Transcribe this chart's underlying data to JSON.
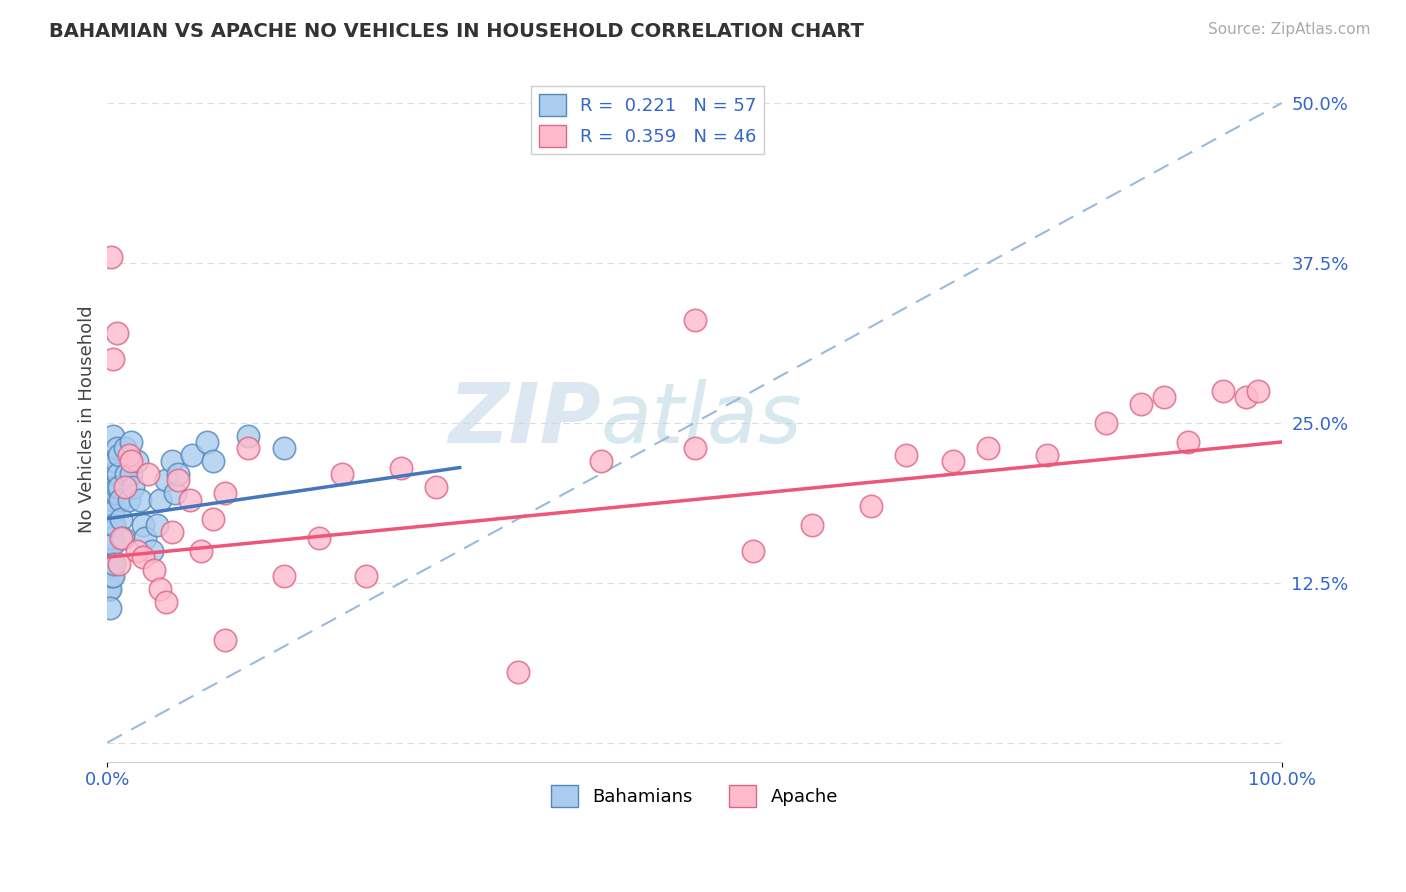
{
  "title": "BAHAMIAN VS APACHE NO VEHICLES IN HOUSEHOLD CORRELATION CHART",
  "source": "Source: ZipAtlas.com",
  "ylabel": "No Vehicles in Household",
  "y_tick_values_right": [
    0,
    12.5,
    25.0,
    37.5,
    50.0
  ],
  "y_tick_labels_right": [
    "",
    "12.5%",
    "25.0%",
    "37.5%",
    "50.0%"
  ],
  "xlim": [
    0.0,
    100.0
  ],
  "ylim": [
    -1.5,
    52.0
  ],
  "legend_label1": "R =  0.221   N = 57",
  "legend_label2": "R =  0.359   N = 46",
  "bottom_legend_labels": [
    "Bahamians",
    "Apache"
  ],
  "color_blue_face": "#aaccee",
  "color_blue_edge": "#5588bb",
  "color_pink_face": "#ffbbcc",
  "color_pink_edge": "#dd6688",
  "regression_blue": "#4477bb",
  "regression_pink": "#ee5577",
  "background_color": "#ffffff",
  "grid_color": "#cccccc",
  "watermark_zip": "ZIP",
  "watermark_atlas": "atlas",
  "bahamian_x": [
    0.1,
    0.1,
    0.1,
    0.1,
    0.2,
    0.2,
    0.2,
    0.2,
    0.2,
    0.3,
    0.3,
    0.3,
    0.3,
    0.4,
    0.4,
    0.4,
    0.4,
    0.5,
    0.5,
    0.5,
    0.5,
    0.5,
    0.6,
    0.6,
    0.6,
    0.7,
    0.7,
    0.8,
    0.8,
    0.9,
    1.0,
    1.0,
    1.1,
    1.2,
    1.3,
    1.5,
    1.6,
    1.8,
    2.0,
    2.0,
    2.2,
    2.5,
    2.8,
    3.0,
    3.2,
    3.8,
    4.2,
    4.5,
    5.0,
    5.5,
    5.8,
    6.0,
    7.2,
    8.5,
    9.0,
    12.0,
    15.0
  ],
  "bahamian_y": [
    16.5,
    15.0,
    13.5,
    12.0,
    18.0,
    16.0,
    14.0,
    12.0,
    10.5,
    20.0,
    17.0,
    15.5,
    14.0,
    22.0,
    19.0,
    16.0,
    13.0,
    24.0,
    21.0,
    18.0,
    15.5,
    13.0,
    20.0,
    17.0,
    14.0,
    22.0,
    19.5,
    23.0,
    20.0,
    21.0,
    22.5,
    20.0,
    19.0,
    17.5,
    16.0,
    23.0,
    21.0,
    19.0,
    23.5,
    21.0,
    20.0,
    22.0,
    19.0,
    17.0,
    16.0,
    15.0,
    17.0,
    19.0,
    20.5,
    22.0,
    19.5,
    21.0,
    22.5,
    23.5,
    22.0,
    24.0,
    23.0
  ],
  "apache_x": [
    0.3,
    0.5,
    0.8,
    1.0,
    1.2,
    1.5,
    1.8,
    2.0,
    2.5,
    3.0,
    3.5,
    4.0,
    4.5,
    5.0,
    5.5,
    6.0,
    7.0,
    8.0,
    9.0,
    10.0,
    12.0,
    15.0,
    18.0,
    20.0,
    22.0,
    25.0,
    28.0,
    35.0,
    42.0,
    50.0,
    55.0,
    60.0,
    65.0,
    68.0,
    72.0,
    75.0,
    80.0,
    85.0,
    88.0,
    90.0,
    92.0,
    95.0,
    97.0,
    98.0,
    50.0,
    10.0
  ],
  "apache_y": [
    38.0,
    30.0,
    32.0,
    14.0,
    16.0,
    20.0,
    22.5,
    22.0,
    15.0,
    14.5,
    21.0,
    13.5,
    12.0,
    11.0,
    16.5,
    20.5,
    19.0,
    15.0,
    17.5,
    19.5,
    23.0,
    13.0,
    16.0,
    21.0,
    13.0,
    21.5,
    20.0,
    5.5,
    22.0,
    23.0,
    15.0,
    17.0,
    18.5,
    22.5,
    22.0,
    23.0,
    22.5,
    25.0,
    26.5,
    27.0,
    23.5,
    27.5,
    27.0,
    27.5,
    33.0,
    8.0
  ],
  "ref_line_color": "#99bbdd",
  "ref_line_x": [
    0,
    100
  ],
  "ref_line_y": [
    0,
    50
  ],
  "blue_reg_x0": 0,
  "blue_reg_y0": 17.5,
  "blue_reg_x1": 30,
  "blue_reg_y1": 21.5,
  "pink_reg_x0": 0,
  "pink_reg_y0": 14.5,
  "pink_reg_x1": 100,
  "pink_reg_y1": 23.5
}
